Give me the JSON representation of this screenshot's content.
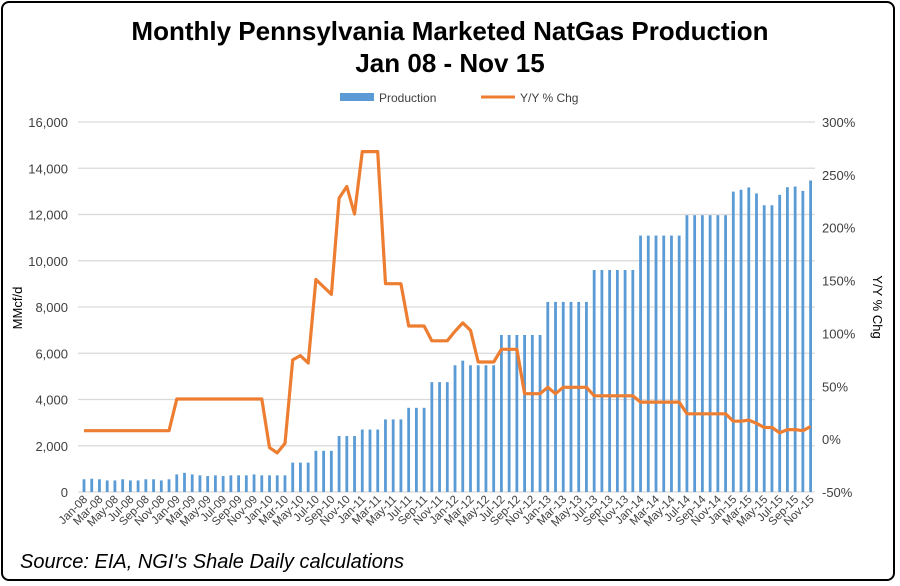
{
  "chart_data": {
    "type": "bar+line",
    "title": "Monthly Pennsylvania Marketed NatGas Production",
    "subtitle": "Jan 08 - Nov 15",
    "ylabel": "MMcf/d",
    "y2label": "Y/Y % Chg",
    "ylim": [
      0,
      16000
    ],
    "y2lim": [
      -50,
      300
    ],
    "yticks": [
      "0",
      "2,000",
      "4,000",
      "6,000",
      "8,000",
      "10,000",
      "12,000",
      "14,000",
      "16,000"
    ],
    "y2ticks": [
      "-50%",
      "0%",
      "50%",
      "100%",
      "150%",
      "200%",
      "250%",
      "300%"
    ],
    "grid": true,
    "legend_position": "top",
    "categories": [
      "Jan-08",
      "Feb-08",
      "Mar-08",
      "Apr-08",
      "May-08",
      "Jun-08",
      "Jul-08",
      "Aug-08",
      "Sep-08",
      "Oct-08",
      "Nov-08",
      "Dec-08",
      "Jan-09",
      "Feb-09",
      "Mar-09",
      "Apr-09",
      "May-09",
      "Jun-09",
      "Jul-09",
      "Aug-09",
      "Sep-09",
      "Oct-09",
      "Nov-09",
      "Dec-09",
      "Jan-10",
      "Feb-10",
      "Mar-10",
      "Apr-10",
      "May-10",
      "Jun-10",
      "Jul-10",
      "Aug-10",
      "Sep-10",
      "Oct-10",
      "Nov-10",
      "Dec-10",
      "Jan-11",
      "Feb-11",
      "Mar-11",
      "Apr-11",
      "May-11",
      "Jun-11",
      "Jul-11",
      "Aug-11",
      "Sep-11",
      "Oct-11",
      "Nov-11",
      "Dec-11",
      "Jan-12",
      "Feb-12",
      "Mar-12",
      "Apr-12",
      "May-12",
      "Jun-12",
      "Jul-12",
      "Aug-12",
      "Sep-12",
      "Oct-12",
      "Nov-12",
      "Dec-12",
      "Jan-13",
      "Feb-13",
      "Mar-13",
      "Apr-13",
      "May-13",
      "Jun-13",
      "Jul-13",
      "Aug-13",
      "Sep-13",
      "Oct-13",
      "Nov-13",
      "Dec-13",
      "Jan-14",
      "Feb-14",
      "Mar-14",
      "Apr-14",
      "May-14",
      "Jun-14",
      "Jul-14",
      "Aug-14",
      "Sep-14",
      "Oct-14",
      "Nov-14",
      "Dec-14",
      "Jan-15",
      "Feb-15",
      "Mar-15",
      "Apr-15",
      "May-15",
      "Jun-15",
      "Jul-15",
      "Aug-15",
      "Sep-15",
      "Oct-15",
      "Nov-15"
    ],
    "series": [
      {
        "name": "Production",
        "type": "bar",
        "axis": "left",
        "color": "#5B9BD5",
        "values": [
          550,
          575,
          550,
          500,
          500,
          550,
          500,
          500,
          550,
          550,
          500,
          550,
          760,
          830,
          760,
          720,
          690,
          720,
          690,
          720,
          720,
          720,
          760,
          720,
          720,
          720,
          720,
          1270,
          1270,
          1270,
          1780,
          1780,
          1780,
          2420,
          2420,
          2420,
          2700,
          2700,
          2700,
          3140,
          3140,
          3140,
          3640,
          3640,
          3640,
          4750,
          4750,
          4750,
          5480,
          5680,
          5480,
          5480,
          5480,
          5480,
          6790,
          6790,
          6790,
          6790,
          6790,
          6790,
          8220,
          8220,
          8220,
          8220,
          8220,
          8220,
          9600,
          9600,
          9600,
          9600,
          9600,
          9600,
          11090,
          11090,
          11090,
          11090,
          11090,
          11090,
          11970,
          11970,
          11970,
          11970,
          11970,
          11970,
          12990,
          13070,
          13170,
          12910,
          12400,
          12400,
          12850,
          13180,
          13210,
          13020,
          13470
        ]
      },
      {
        "name": "Y/Y % Chg",
        "type": "line",
        "axis": "right",
        "color": "#ED7D31",
        "values": [
          8,
          8,
          8,
          8,
          8,
          8,
          8,
          8,
          8,
          8,
          8,
          8,
          38,
          38,
          38,
          38,
          38,
          38,
          38,
          38,
          38,
          38,
          38,
          38,
          -8,
          -13,
          -4,
          75,
          79,
          72,
          151,
          144,
          137,
          228,
          239,
          213,
          272,
          272,
          272,
          147,
          147,
          147,
          107,
          107,
          107,
          93,
          93,
          93,
          102,
          110,
          103,
          73,
          73,
          73,
          85,
          85,
          85,
          43,
          43,
          43,
          49,
          43,
          49,
          49,
          49,
          49,
          41,
          41,
          41,
          41,
          41,
          41,
          35,
          35,
          35,
          35,
          35,
          35,
          24,
          24,
          24,
          24,
          24,
          24,
          17,
          17,
          18,
          15,
          11,
          11,
          6,
          9,
          9,
          8,
          12
        ]
      }
    ]
  },
  "source": "Source: EIA, NGI's Shale Daily calculations"
}
